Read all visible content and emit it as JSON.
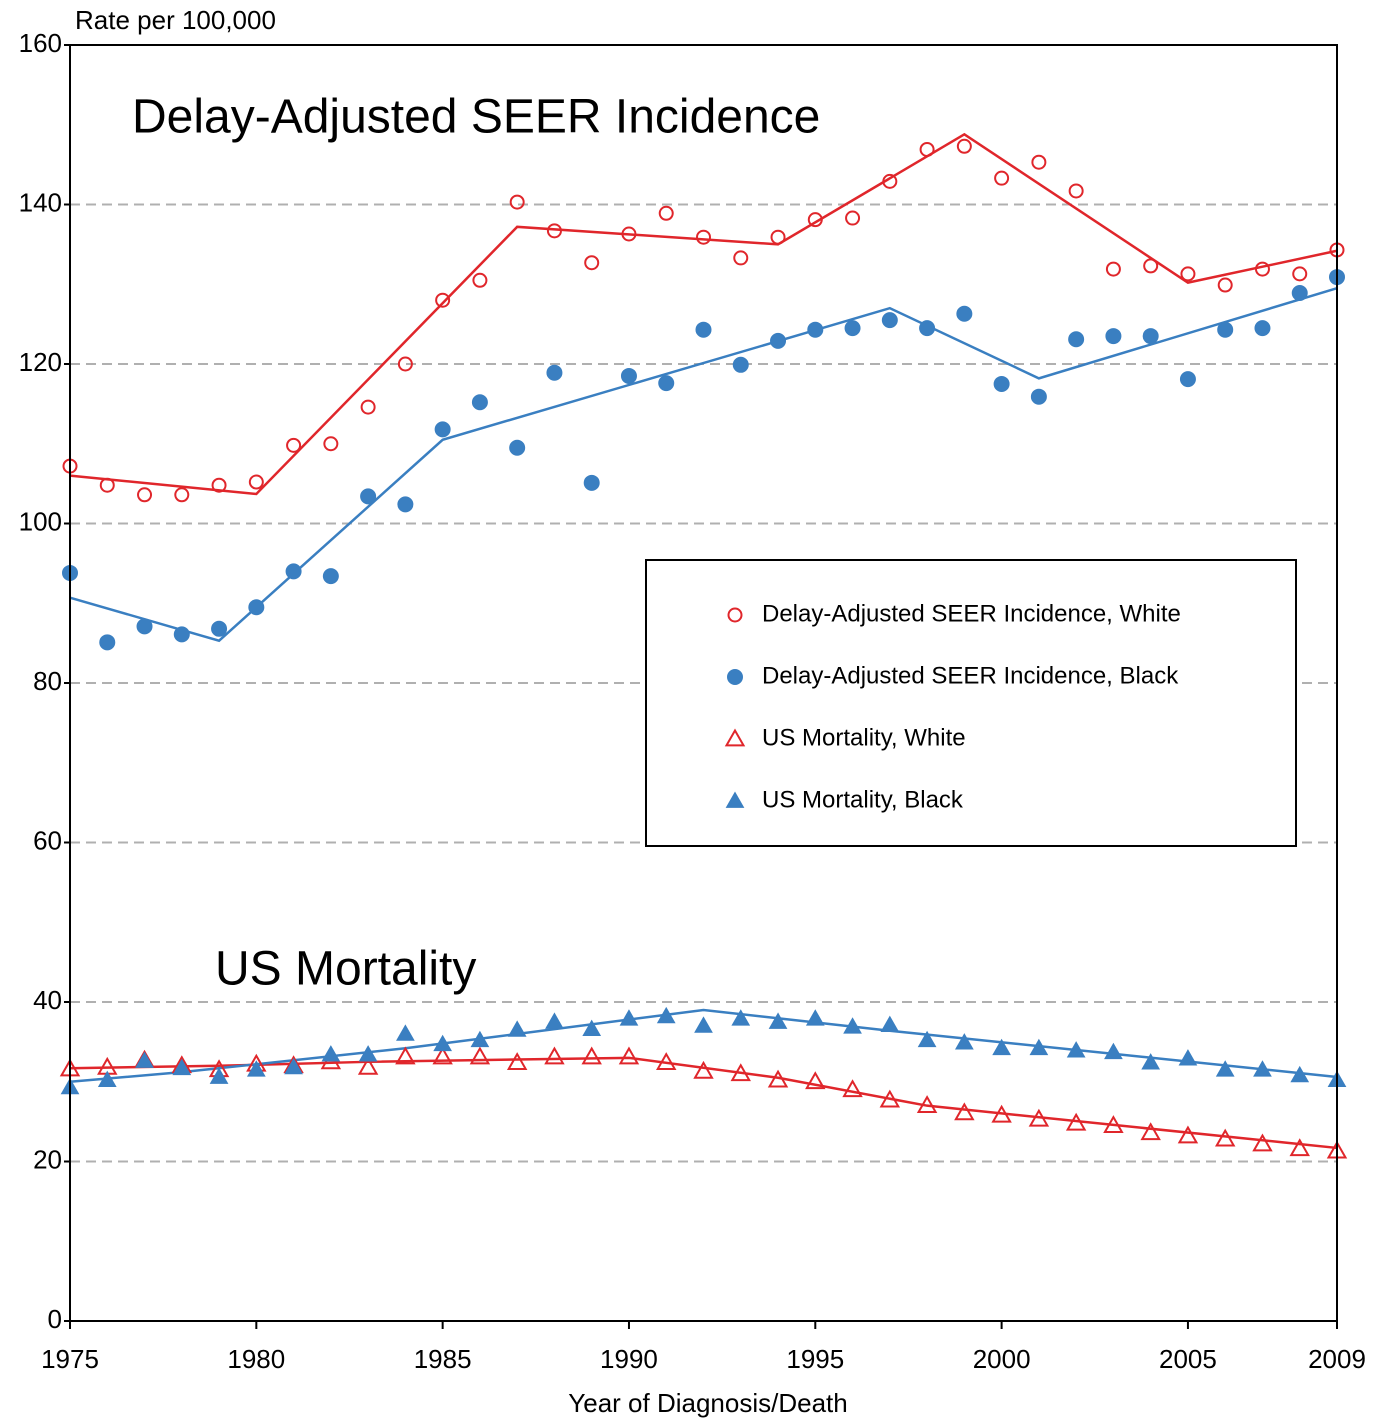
{
  "chart_data": {
    "type": "scatter",
    "y_label": "Rate per 100,000",
    "x_label": "Year of Diagnosis/Death",
    "annotations": [
      "Delay-Adjusted SEER Incidence",
      "US Mortality"
    ],
    "xlim": [
      1975,
      2009
    ],
    "xticks": [
      1975,
      1980,
      1985,
      1990,
      1995,
      2000,
      2005,
      2009
    ],
    "ylim": [
      0,
      160
    ],
    "yticks": [
      0,
      20,
      40,
      60,
      80,
      100,
      120,
      140,
      160
    ],
    "grid": true,
    "legend": "right",
    "x": [
      1975,
      1976,
      1977,
      1978,
      1979,
      1980,
      1981,
      1982,
      1983,
      1984,
      1985,
      1986,
      1987,
      1988,
      1989,
      1990,
      1991,
      1992,
      1993,
      1994,
      1995,
      1996,
      1997,
      1998,
      1999,
      2000,
      2001,
      2002,
      2003,
      2004,
      2005,
      2006,
      2007,
      2008,
      2009
    ],
    "series": [
      {
        "name": "Delay-Adjusted SEER Incidence, White",
        "color": "#e0262b",
        "marker": "circle",
        "filled": false,
        "values": [
          107.2,
          104.8,
          103.6,
          103.6,
          104.8,
          105.2,
          109.8,
          110.0,
          114.6,
          120.0,
          128.0,
          130.5,
          140.3,
          136.7,
          132.7,
          136.3,
          138.9,
          135.9,
          133.3,
          135.9,
          138.1,
          138.3,
          142.9,
          146.9,
          147.3,
          143.3,
          145.3,
          141.7,
          131.9,
          132.3,
          131.3,
          129.9,
          131.9,
          131.3,
          134.3
        ],
        "trend_x": [
          1975,
          1980,
          1987,
          1994,
          1999,
          2005,
          2009
        ],
        "trend_values": [
          106.0,
          103.7,
          137.2,
          135.0,
          148.8,
          130.2,
          134.2
        ]
      },
      {
        "name": "Delay-Adjusted SEER Incidence, Black",
        "color": "#3a7fc1",
        "marker": "circle",
        "filled": true,
        "values": [
          93.8,
          85.1,
          87.1,
          86.1,
          86.8,
          89.5,
          94.0,
          93.4,
          103.4,
          102.4,
          111.8,
          115.2,
          109.5,
          118.9,
          105.1,
          118.5,
          117.6,
          124.3,
          119.9,
          122.9,
          124.3,
          124.5,
          125.5,
          124.5,
          126.3,
          117.5,
          115.9,
          123.1,
          123.5,
          123.5,
          118.1,
          124.3,
          124.5,
          128.9,
          130.9
        ],
        "trend_x": [
          1975,
          1979,
          1985,
          1997,
          2001,
          2009
        ],
        "trend_values": [
          90.7,
          85.3,
          110.5,
          127.0,
          118.2,
          129.5
        ]
      },
      {
        "name": "US Mortality, White",
        "color": "#e0262b",
        "marker": "triangle",
        "filled": false,
        "values": [
          31.6,
          31.8,
          32.7,
          32.0,
          31.5,
          32.2,
          32.0,
          32.5,
          31.8,
          33.1,
          33.1,
          33.1,
          32.4,
          33.1,
          33.1,
          33.1,
          32.4,
          31.3,
          31.0,
          30.2,
          30.0,
          29.0,
          27.7,
          27.0,
          26.1,
          25.8,
          25.3,
          24.8,
          24.5,
          23.6,
          23.2,
          22.8,
          22.2,
          21.6,
          21.3
        ],
        "trend_x": [
          1975,
          1979,
          1983,
          1990,
          1994,
          1998,
          2009
        ],
        "trend_values": [
          31.7,
          32.0,
          32.5,
          33.0,
          30.5,
          27.0,
          21.7
        ]
      },
      {
        "name": "US Mortality, Black",
        "color": "#3a7fc1",
        "marker": "triangle",
        "filled": true,
        "values": [
          29.3,
          30.2,
          32.6,
          31.7,
          30.6,
          31.5,
          31.8,
          33.4,
          33.4,
          36.0,
          34.7,
          35.2,
          36.5,
          37.5,
          36.6,
          37.9,
          38.2,
          37.0,
          37.9,
          37.5,
          37.9,
          36.9,
          37.1,
          35.2,
          34.9,
          34.2,
          34.2,
          33.9,
          33.7,
          32.4,
          32.9,
          31.5,
          31.5,
          30.8,
          30.2
        ],
        "trend_x": [
          1975,
          1978,
          1984,
          1992,
          1997,
          2009
        ],
        "trend_values": [
          30.0,
          31.2,
          34.2,
          39.0,
          36.4,
          30.6
        ]
      }
    ]
  }
}
